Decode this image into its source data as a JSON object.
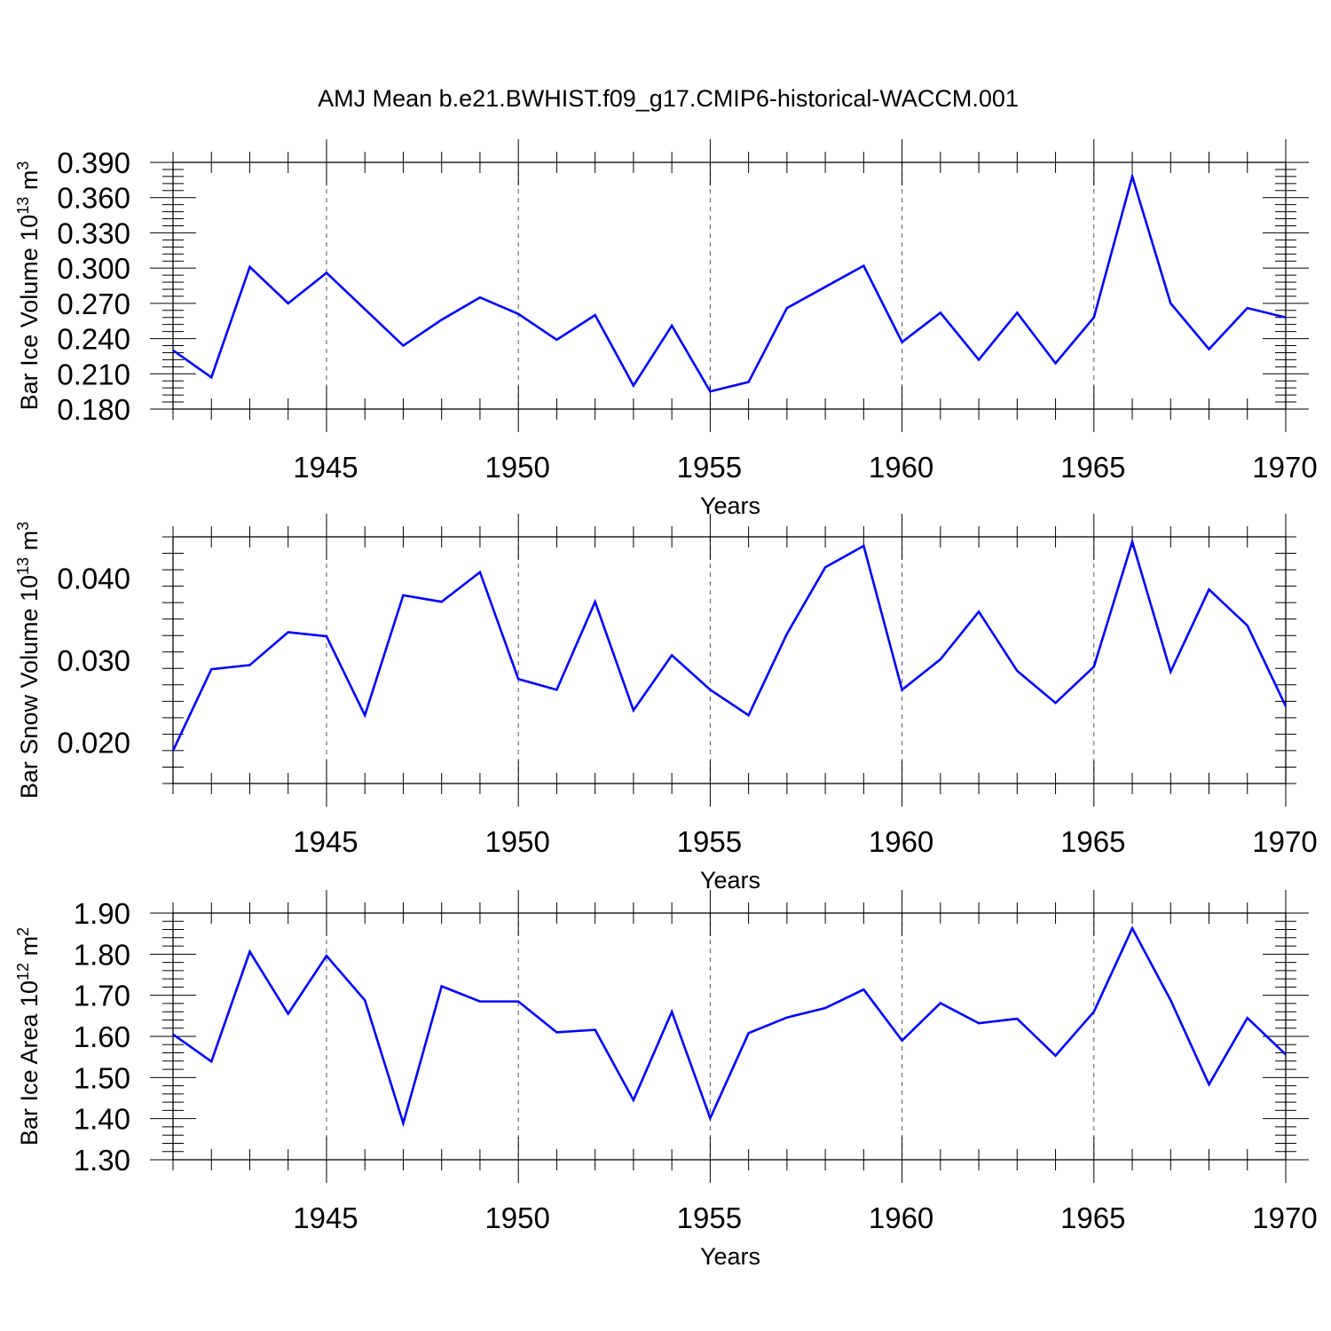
{
  "title": "AMJ Mean b.e21.BWHIST.f09_g17.CMIP6-historical-WACCM.001",
  "colors": {
    "line": "#0000ff",
    "axis": "#000000",
    "grid": "#555555"
  },
  "chart_data": [
    {
      "type": "line",
      "name": "bar-ice-volume",
      "ylabel_base": "Bar Ice Volume 10",
      "ylabel_exp": "13",
      "ylabel_unit": " m",
      "ylabel_unit_exp": "3",
      "xlabel": "Years",
      "xlim": [
        1941,
        1970
      ],
      "ylim": [
        0.18,
        0.39
      ],
      "yticks": [
        0.18,
        0.21,
        0.24,
        0.27,
        0.3,
        0.33,
        0.36,
        0.39
      ],
      "ytick_labels": [
        "0.180",
        "0.210",
        "0.240",
        "0.270",
        "0.300",
        "0.330",
        "0.360",
        "0.390"
      ],
      "xticks": [
        1945,
        1950,
        1955,
        1960,
        1965,
        1970
      ],
      "xtick_labels": [
        "1945",
        "1950",
        "1955",
        "1960",
        "1965",
        "1970"
      ],
      "x": [
        1941,
        1942,
        1943,
        1944,
        1945,
        1946,
        1947,
        1948,
        1949,
        1950,
        1951,
        1952,
        1953,
        1954,
        1955,
        1956,
        1957,
        1958,
        1959,
        1960,
        1961,
        1962,
        1963,
        1964,
        1965,
        1966,
        1967,
        1968,
        1969,
        1970
      ],
      "values": [
        0.23,
        0.207,
        0.301,
        0.27,
        0.296,
        0.265,
        0.234,
        0.256,
        0.275,
        0.261,
        0.239,
        0.26,
        0.2,
        0.251,
        0.195,
        0.203,
        0.266,
        0.284,
        0.302,
        0.237,
        0.262,
        0.222,
        0.262,
        0.219,
        0.258,
        0.378,
        0.27,
        0.231,
        0.266,
        0.258
      ]
    },
    {
      "type": "line",
      "name": "bar-snow-volume",
      "ylabel_base": "Bar Snow Volume 10",
      "ylabel_exp": "13",
      "ylabel_unit": " m",
      "ylabel_unit_exp": "3",
      "xlabel": "Years",
      "xlim": [
        1941,
        1970
      ],
      "ylim": [
        0.015,
        0.045
      ],
      "yticks": [
        0.02,
        0.03,
        0.04
      ],
      "ytick_labels": [
        "0.020",
        "0.030",
        "0.040"
      ],
      "xticks": [
        1945,
        1950,
        1955,
        1960,
        1965,
        1970
      ],
      "xtick_labels": [
        "1945",
        "1950",
        "1955",
        "1960",
        "1965",
        "1970"
      ],
      "x": [
        1941,
        1942,
        1943,
        1944,
        1945,
        1946,
        1947,
        1948,
        1949,
        1950,
        1951,
        1952,
        1953,
        1954,
        1955,
        1956,
        1957,
        1958,
        1959,
        1960,
        1961,
        1962,
        1963,
        1964,
        1965,
        1966,
        1967,
        1968,
        1969,
        1970
      ],
      "values": [
        0.019,
        0.0289,
        0.0294,
        0.0334,
        0.0329,
        0.0233,
        0.0379,
        0.0371,
        0.0407,
        0.0277,
        0.0264,
        0.0371,
        0.0239,
        0.0306,
        0.0264,
        0.0233,
        0.0332,
        0.0413,
        0.0439,
        0.0264,
        0.0301,
        0.0359,
        0.0287,
        0.0248,
        0.0292,
        0.0444,
        0.0286,
        0.0386,
        0.0342,
        0.0244
      ]
    },
    {
      "type": "line",
      "name": "bar-ice-area",
      "ylabel_base": "Bar Ice Area 10",
      "ylabel_exp": "12",
      "ylabel_unit": " m",
      "ylabel_unit_exp": "2",
      "xlabel": "Years",
      "xlim": [
        1941,
        1970
      ],
      "ylim": [
        1.3,
        1.9
      ],
      "yticks": [
        1.3,
        1.4,
        1.5,
        1.6,
        1.7,
        1.8,
        1.9
      ],
      "ytick_labels": [
        "1.30",
        "1.40",
        "1.50",
        "1.60",
        "1.70",
        "1.80",
        "1.90"
      ],
      "xticks": [
        1945,
        1950,
        1955,
        1960,
        1965,
        1970
      ],
      "xtick_labels": [
        "1945",
        "1950",
        "1955",
        "1960",
        "1965",
        "1970"
      ],
      "x": [
        1941,
        1942,
        1943,
        1944,
        1945,
        1946,
        1947,
        1948,
        1949,
        1950,
        1951,
        1952,
        1953,
        1954,
        1955,
        1956,
        1957,
        1958,
        1959,
        1960,
        1961,
        1962,
        1963,
        1964,
        1965,
        1966,
        1967,
        1968,
        1969,
        1970
      ],
      "values": [
        1.605,
        1.539,
        1.806,
        1.655,
        1.796,
        1.688,
        1.389,
        1.722,
        1.685,
        1.685,
        1.61,
        1.616,
        1.445,
        1.66,
        1.401,
        1.608,
        1.646,
        1.669,
        1.714,
        1.59,
        1.681,
        1.632,
        1.643,
        1.553,
        1.66,
        1.863,
        1.688,
        1.483,
        1.645,
        1.556
      ]
    }
  ]
}
